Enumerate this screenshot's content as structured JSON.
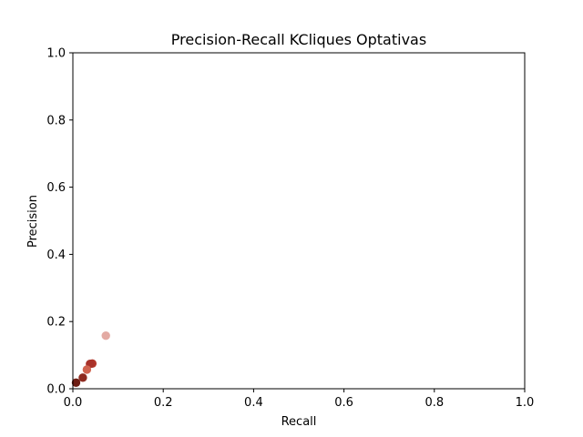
{
  "chart_data": {
    "type": "scatter",
    "title": "Precision-Recall KCliques Optativas",
    "xlabel": "Recall",
    "ylabel": "Precision",
    "xlim": [
      0.0,
      1.0
    ],
    "ylim": [
      0.0,
      1.0
    ],
    "xticks": [
      0.0,
      0.2,
      0.4,
      0.6,
      0.8,
      1.0
    ],
    "yticks": [
      0.0,
      0.2,
      0.4,
      0.6,
      0.8,
      1.0
    ],
    "xtick_labels": [
      "0.0",
      "0.2",
      "0.4",
      "0.6",
      "0.8",
      "1.0"
    ],
    "ytick_labels": [
      "0.0",
      "0.2",
      "0.4",
      "0.6",
      "0.8",
      "1.0"
    ],
    "grid": false,
    "points": [
      {
        "x": 0.073,
        "y": 0.158,
        "color": "#e3aaa3"
      },
      {
        "x": 0.043,
        "y": 0.075,
        "color": "#b2362a"
      },
      {
        "x": 0.038,
        "y": 0.074,
        "color": "#a8322a"
      },
      {
        "x": 0.031,
        "y": 0.057,
        "color": "#d06450"
      },
      {
        "x": 0.022,
        "y": 0.033,
        "color": "#8e2b20"
      },
      {
        "x": 0.007,
        "y": 0.018,
        "color": "#6e1d14"
      }
    ]
  }
}
